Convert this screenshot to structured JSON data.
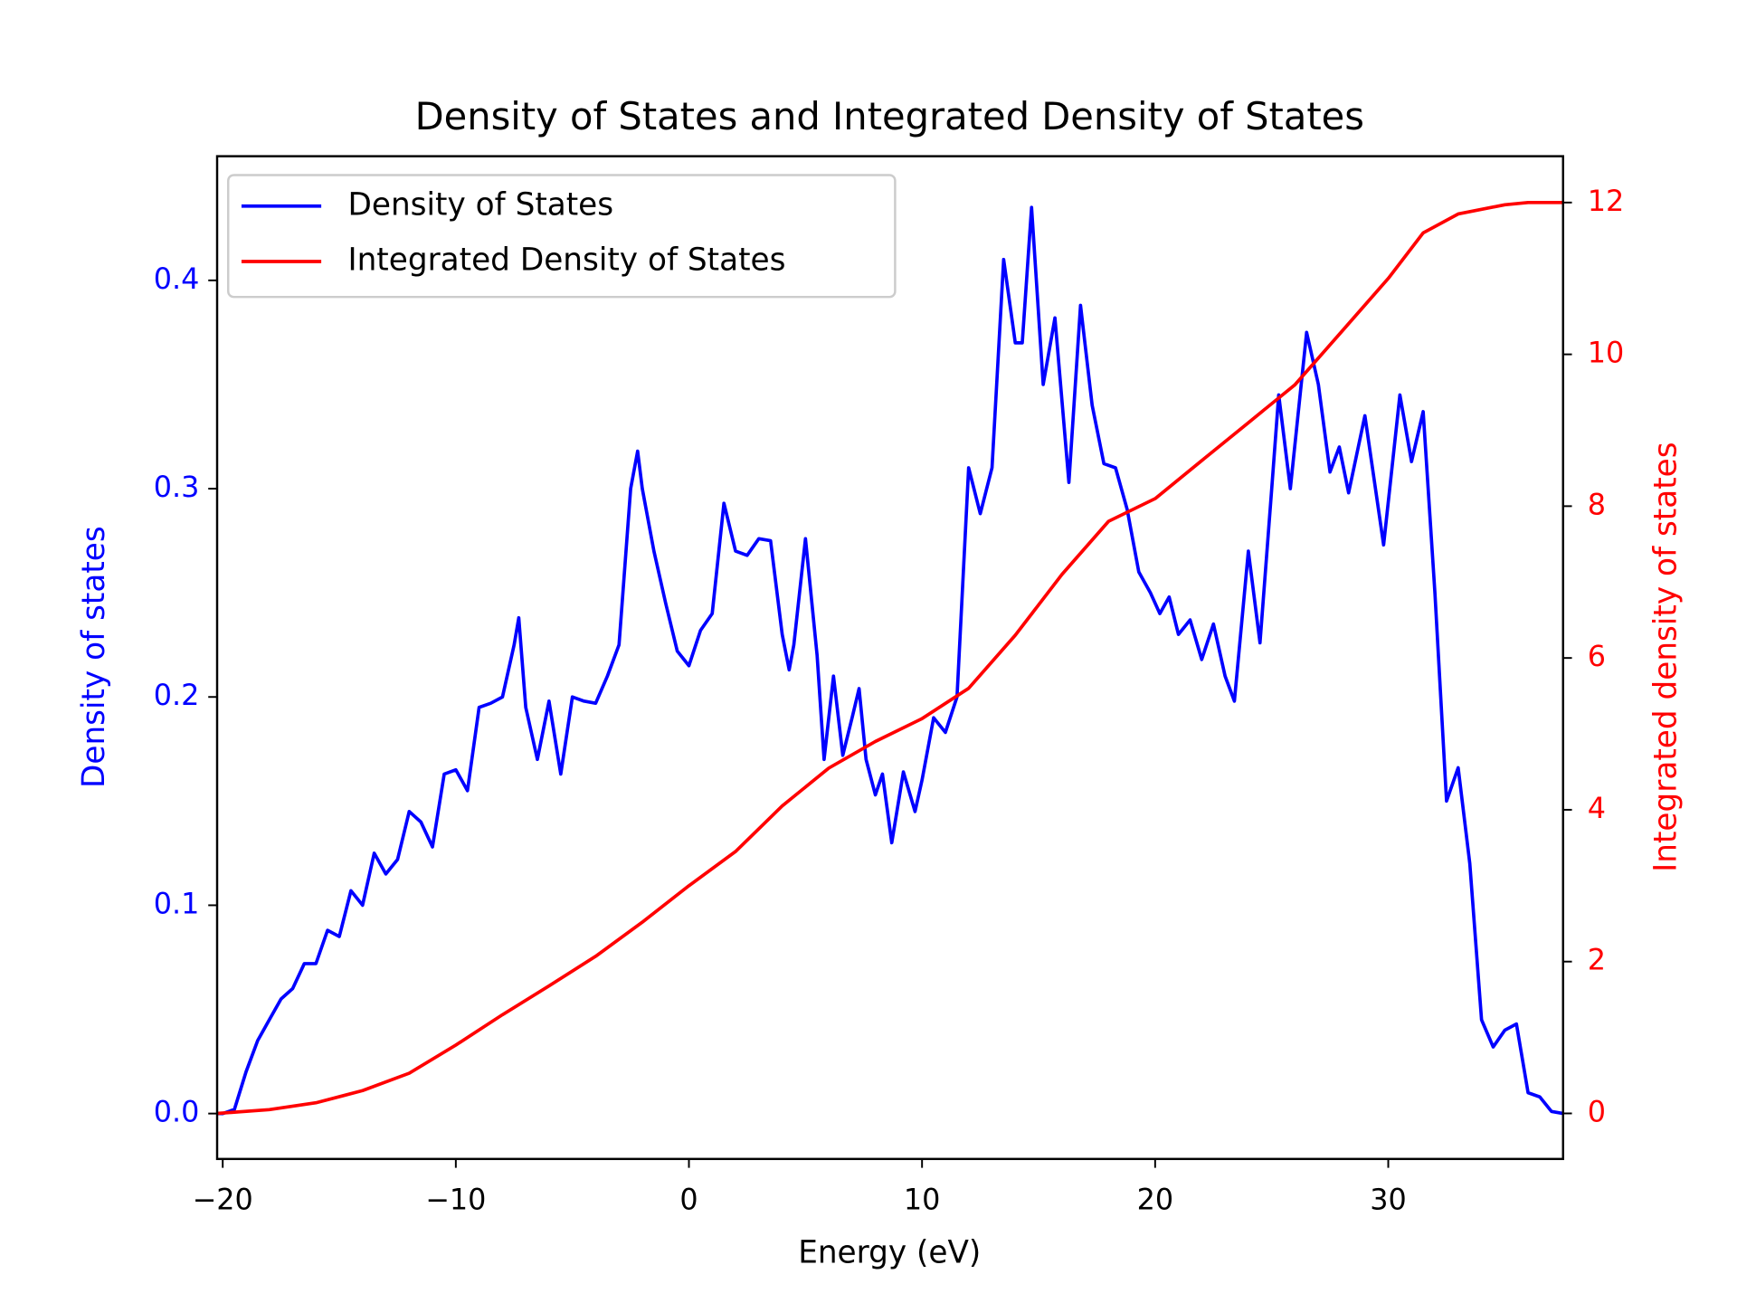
{
  "chart_data": {
    "type": "line",
    "title": "Density of States and Integrated Density of States",
    "x_label": "Energy (eV)",
    "y_label": "Density of states",
    "y2_label": "Integrated density of states",
    "y_label_color": "#0000ff",
    "y2_label_color": "#ff0000",
    "legend": "upper left",
    "xlim": [
      -20.24,
      37.5
    ],
    "xticks": [
      {
        "value": -20,
        "label": "−20"
      },
      {
        "value": -10,
        "label": "−10"
      },
      {
        "value": 0,
        "label": "0"
      },
      10,
      20,
      30
    ],
    "ylim": [
      -0.0218,
      0.4596
    ],
    "yticks": [
      {
        "value": 0,
        "label": "0.0"
      },
      0.1,
      0.2,
      0.3,
      0.4
    ],
    "y2lim": [
      -0.6,
      12.61
    ],
    "y2ticks": [
      0,
      2,
      4,
      6,
      8,
      10,
      12
    ],
    "series": [
      {
        "name": "Density of States",
        "color": "#0000ff",
        "x": [
          -20.24,
          -20,
          -19.5,
          -19,
          -18.5,
          -18,
          -17.5,
          -17,
          -16.5,
          -16,
          -15.5,
          -15,
          -14.5,
          -14,
          -13.5,
          -13,
          -12.5,
          -12,
          -11.5,
          -11,
          -10.5,
          -10,
          -9.5,
          -9,
          -8.5,
          -8,
          -7.5,
          -7.3,
          -7,
          -6.5,
          -6,
          -5.5,
          -5,
          -4.5,
          -4,
          -3.5,
          -3,
          -2.5,
          -2.2,
          -2,
          -1.5,
          -1,
          -0.5,
          0,
          0.5,
          1,
          1.5,
          2,
          2.5,
          3,
          3.5,
          4,
          4.3,
          4.5,
          5,
          5.5,
          5.8,
          6.2,
          6.6,
          7,
          7.3,
          7.6,
          8,
          8.3,
          8.7,
          9.2,
          9.7,
          10,
          10.5,
          11,
          11.5,
          12,
          12.5,
          13,
          13.5,
          14,
          14.3,
          14.7,
          15.2,
          15.7,
          16.3,
          16.8,
          17.3,
          17.8,
          18.3,
          18.8,
          19.3,
          19.8,
          20.2,
          20.6,
          21,
          21.5,
          22,
          22.5,
          23,
          23.4,
          24,
          24.5,
          25,
          25.3,
          25.8,
          26.5,
          27,
          27.5,
          27.9,
          28.3,
          29,
          29.8,
          30.5,
          31,
          31.5,
          32,
          32.5,
          33,
          33.5,
          34,
          34.5,
          35,
          35.5,
          36,
          36.5,
          37,
          37.5
        ],
        "values": [
          0,
          0,
          0.002,
          0.02,
          0.035,
          0.045,
          0.055,
          0.06,
          0.072,
          0.072,
          0.088,
          0.085,
          0.107,
          0.1,
          0.125,
          0.115,
          0.122,
          0.145,
          0.14,
          0.128,
          0.163,
          0.165,
          0.155,
          0.195,
          0.197,
          0.2,
          0.225,
          0.238,
          0.195,
          0.17,
          0.198,
          0.163,
          0.2,
          0.198,
          0.197,
          0.21,
          0.225,
          0.3,
          0.318,
          0.3,
          0.27,
          0.245,
          0.222,
          0.215,
          0.232,
          0.24,
          0.293,
          0.27,
          0.268,
          0.276,
          0.275,
          0.23,
          0.213,
          0.225,
          0.276,
          0.22,
          0.17,
          0.21,
          0.172,
          0.19,
          0.204,
          0.17,
          0.153,
          0.163,
          0.13,
          0.164,
          0.145,
          0.16,
          0.19,
          0.183,
          0.2,
          0.31,
          0.288,
          0.31,
          0.41,
          0.37,
          0.37,
          0.435,
          0.35,
          0.382,
          0.303,
          0.388,
          0.34,
          0.312,
          0.31,
          0.29,
          0.26,
          0.25,
          0.24,
          0.248,
          0.23,
          0.237,
          0.218,
          0.235,
          0.21,
          0.198,
          0.27,
          0.226,
          0.3,
          0.345,
          0.3,
          0.375,
          0.35,
          0.308,
          0.32,
          0.298,
          0.335,
          0.273,
          0.345,
          0.313,
          0.337,
          0.25,
          0.15,
          0.166,
          0.12,
          0.045,
          0.032,
          0.04,
          0.043,
          0.01,
          0.008,
          0.001,
          0
        ]
      },
      {
        "name": "Integrated Density of States",
        "color": "#ff0000",
        "axis": "y2",
        "x": [
          -20.24,
          -18,
          -16,
          -14,
          -12,
          -10,
          -8,
          -6,
          -4,
          -2,
          0,
          2,
          4,
          6,
          8,
          10,
          12,
          14,
          16,
          18,
          20,
          22,
          24,
          26,
          28,
          30,
          31.5,
          33,
          35,
          36,
          37.5
        ],
        "values": [
          0,
          0.05,
          0.14,
          0.3,
          0.53,
          0.9,
          1.3,
          1.68,
          2.07,
          2.52,
          3.0,
          3.45,
          4.05,
          4.55,
          4.9,
          5.2,
          5.6,
          6.3,
          7.1,
          7.8,
          8.1,
          8.6,
          9.1,
          9.6,
          10.3,
          11.0,
          11.6,
          11.85,
          11.97,
          12,
          12
        ]
      }
    ]
  }
}
